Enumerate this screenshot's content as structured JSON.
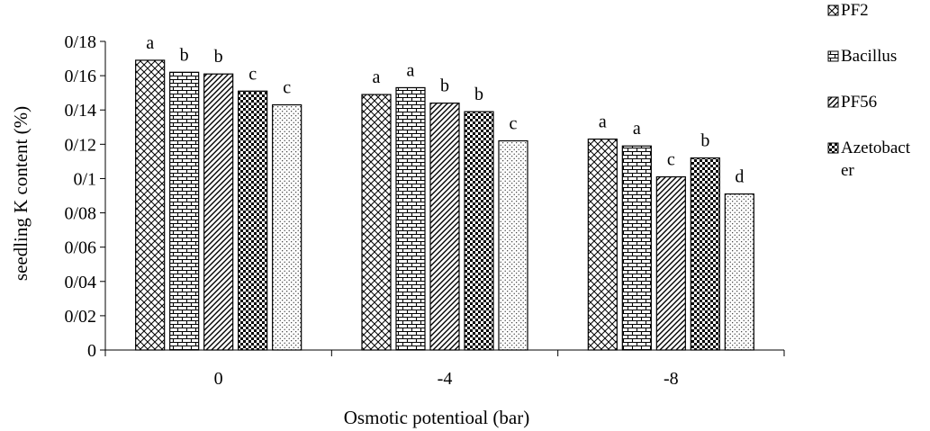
{
  "chart_data": {
    "type": "bar",
    "xlabel": "Osmotic potentioal (bar)",
    "ylabel": "seedling K content (%)",
    "ylim": [
      0,
      0.18
    ],
    "ytick_labels": [
      "0",
      "0/02",
      "0/04",
      "0/06",
      "0/08",
      "0/1",
      "0/12",
      "0/14",
      "0/16",
      "0/18"
    ],
    "categories": [
      "0",
      "-4",
      "-8"
    ],
    "series": [
      {
        "name": "PF2",
        "values": [
          0.169,
          0.149,
          0.123
        ],
        "letters": [
          "a",
          "a",
          "a"
        ],
        "pattern": "pat-cross"
      },
      {
        "name": "Bacillus",
        "values": [
          0.162,
          0.153,
          0.119
        ],
        "letters": [
          "b",
          "a",
          "a"
        ],
        "pattern": "pat-brick"
      },
      {
        "name": "PF56",
        "values": [
          0.161,
          0.144,
          0.101
        ],
        "letters": [
          "b",
          "b",
          "c"
        ],
        "pattern": "pat-wave"
      },
      {
        "name": "Azetobacter",
        "values": [
          0.151,
          0.139,
          0.112
        ],
        "letters": [
          "c",
          "b",
          "b"
        ],
        "pattern": "pat-check"
      },
      {
        "name": "",
        "values": [
          0.143,
          0.122,
          0.091
        ],
        "letters": [
          "c",
          "c",
          "d"
        ],
        "pattern": "pat-dots"
      }
    ],
    "legend": {
      "position": "right",
      "labels": [
        [
          "PF2"
        ],
        [
          "Bacillus"
        ],
        [
          "PF56"
        ],
        [
          "Azetobact",
          "er"
        ]
      ]
    },
    "grid": false
  }
}
